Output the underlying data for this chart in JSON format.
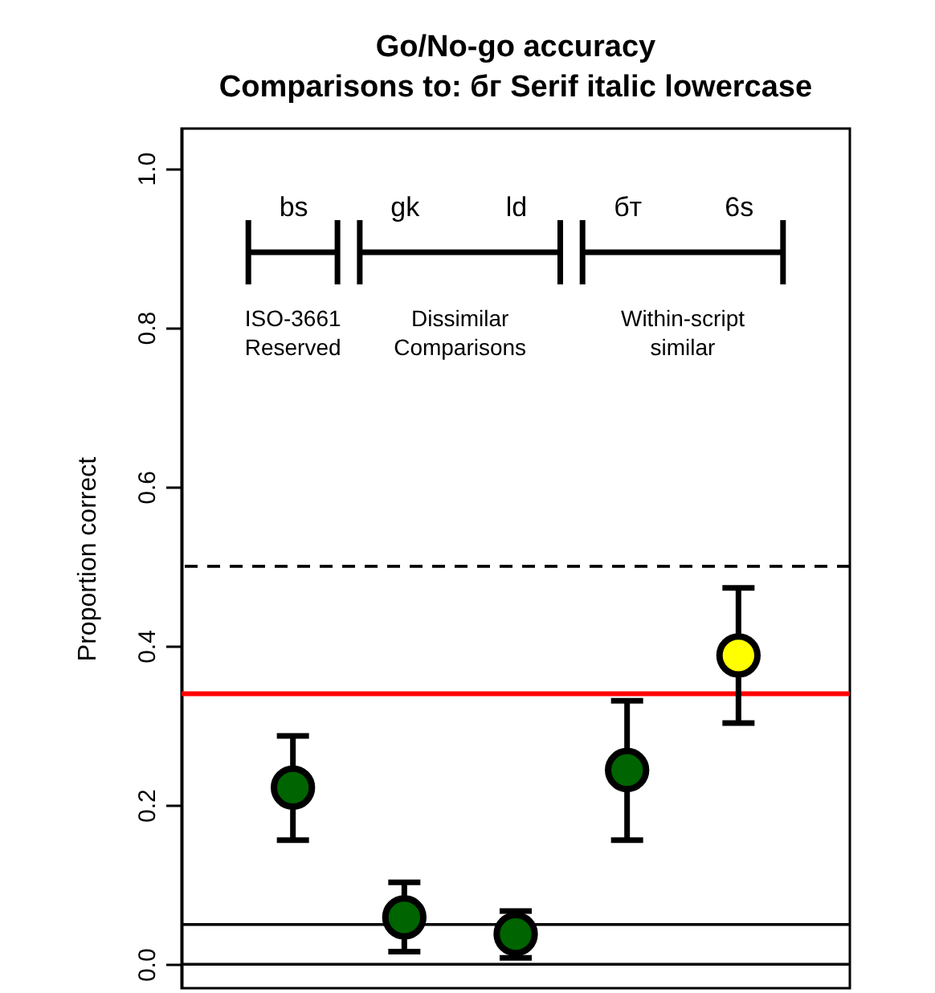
{
  "chart_data": {
    "type": "scatter",
    "title": "Go/No-go accuracy",
    "subtitle": "Comparisons to: бг Serif italic lowercase",
    "ylabel": "Proportion correct",
    "categories": [
      "bs",
      "gk",
      "ld",
      "бт",
      "6s"
    ],
    "values": [
      0.222,
      0.059,
      0.038,
      0.244,
      0.388
    ],
    "errors": [
      [
        0.156,
        0.287
      ],
      [
        0.016,
        0.103
      ],
      [
        0.008,
        0.067
      ],
      [
        0.156,
        0.331
      ],
      [
        0.303,
        0.473
      ]
    ],
    "colors": [
      "#006400",
      "#006400",
      "#006400",
      "#006400",
      "#ffff00"
    ],
    "marker": "circle",
    "ylim": [
      -0.03,
      1.05
    ],
    "yticks": [
      {
        "value": 0,
        "label": "0.0"
      },
      {
        "value": 0.2,
        "label": "0.2"
      },
      {
        "value": 0.4,
        "label": "0.4"
      },
      {
        "value": 0.6,
        "label": "0.6"
      },
      {
        "value": 0.8,
        "label": "0.8"
      },
      {
        "value": 1,
        "label": "1.0"
      }
    ],
    "ref_lines": [
      {
        "axis": "y",
        "value": 0.5,
        "line_style": "dashed",
        "color": "#000000"
      },
      {
        "axis": "y",
        "value": 0.34,
        "color": "#ff0000"
      },
      {
        "axis": "y",
        "value": 0.05,
        "color": "#000000"
      },
      {
        "axis": "y",
        "value": 0,
        "color": "#000000"
      }
    ],
    "annotations": [
      "ISO-3661 Reserved",
      "Dissimilar Comparisons",
      "Within-script similar"
    ]
  }
}
